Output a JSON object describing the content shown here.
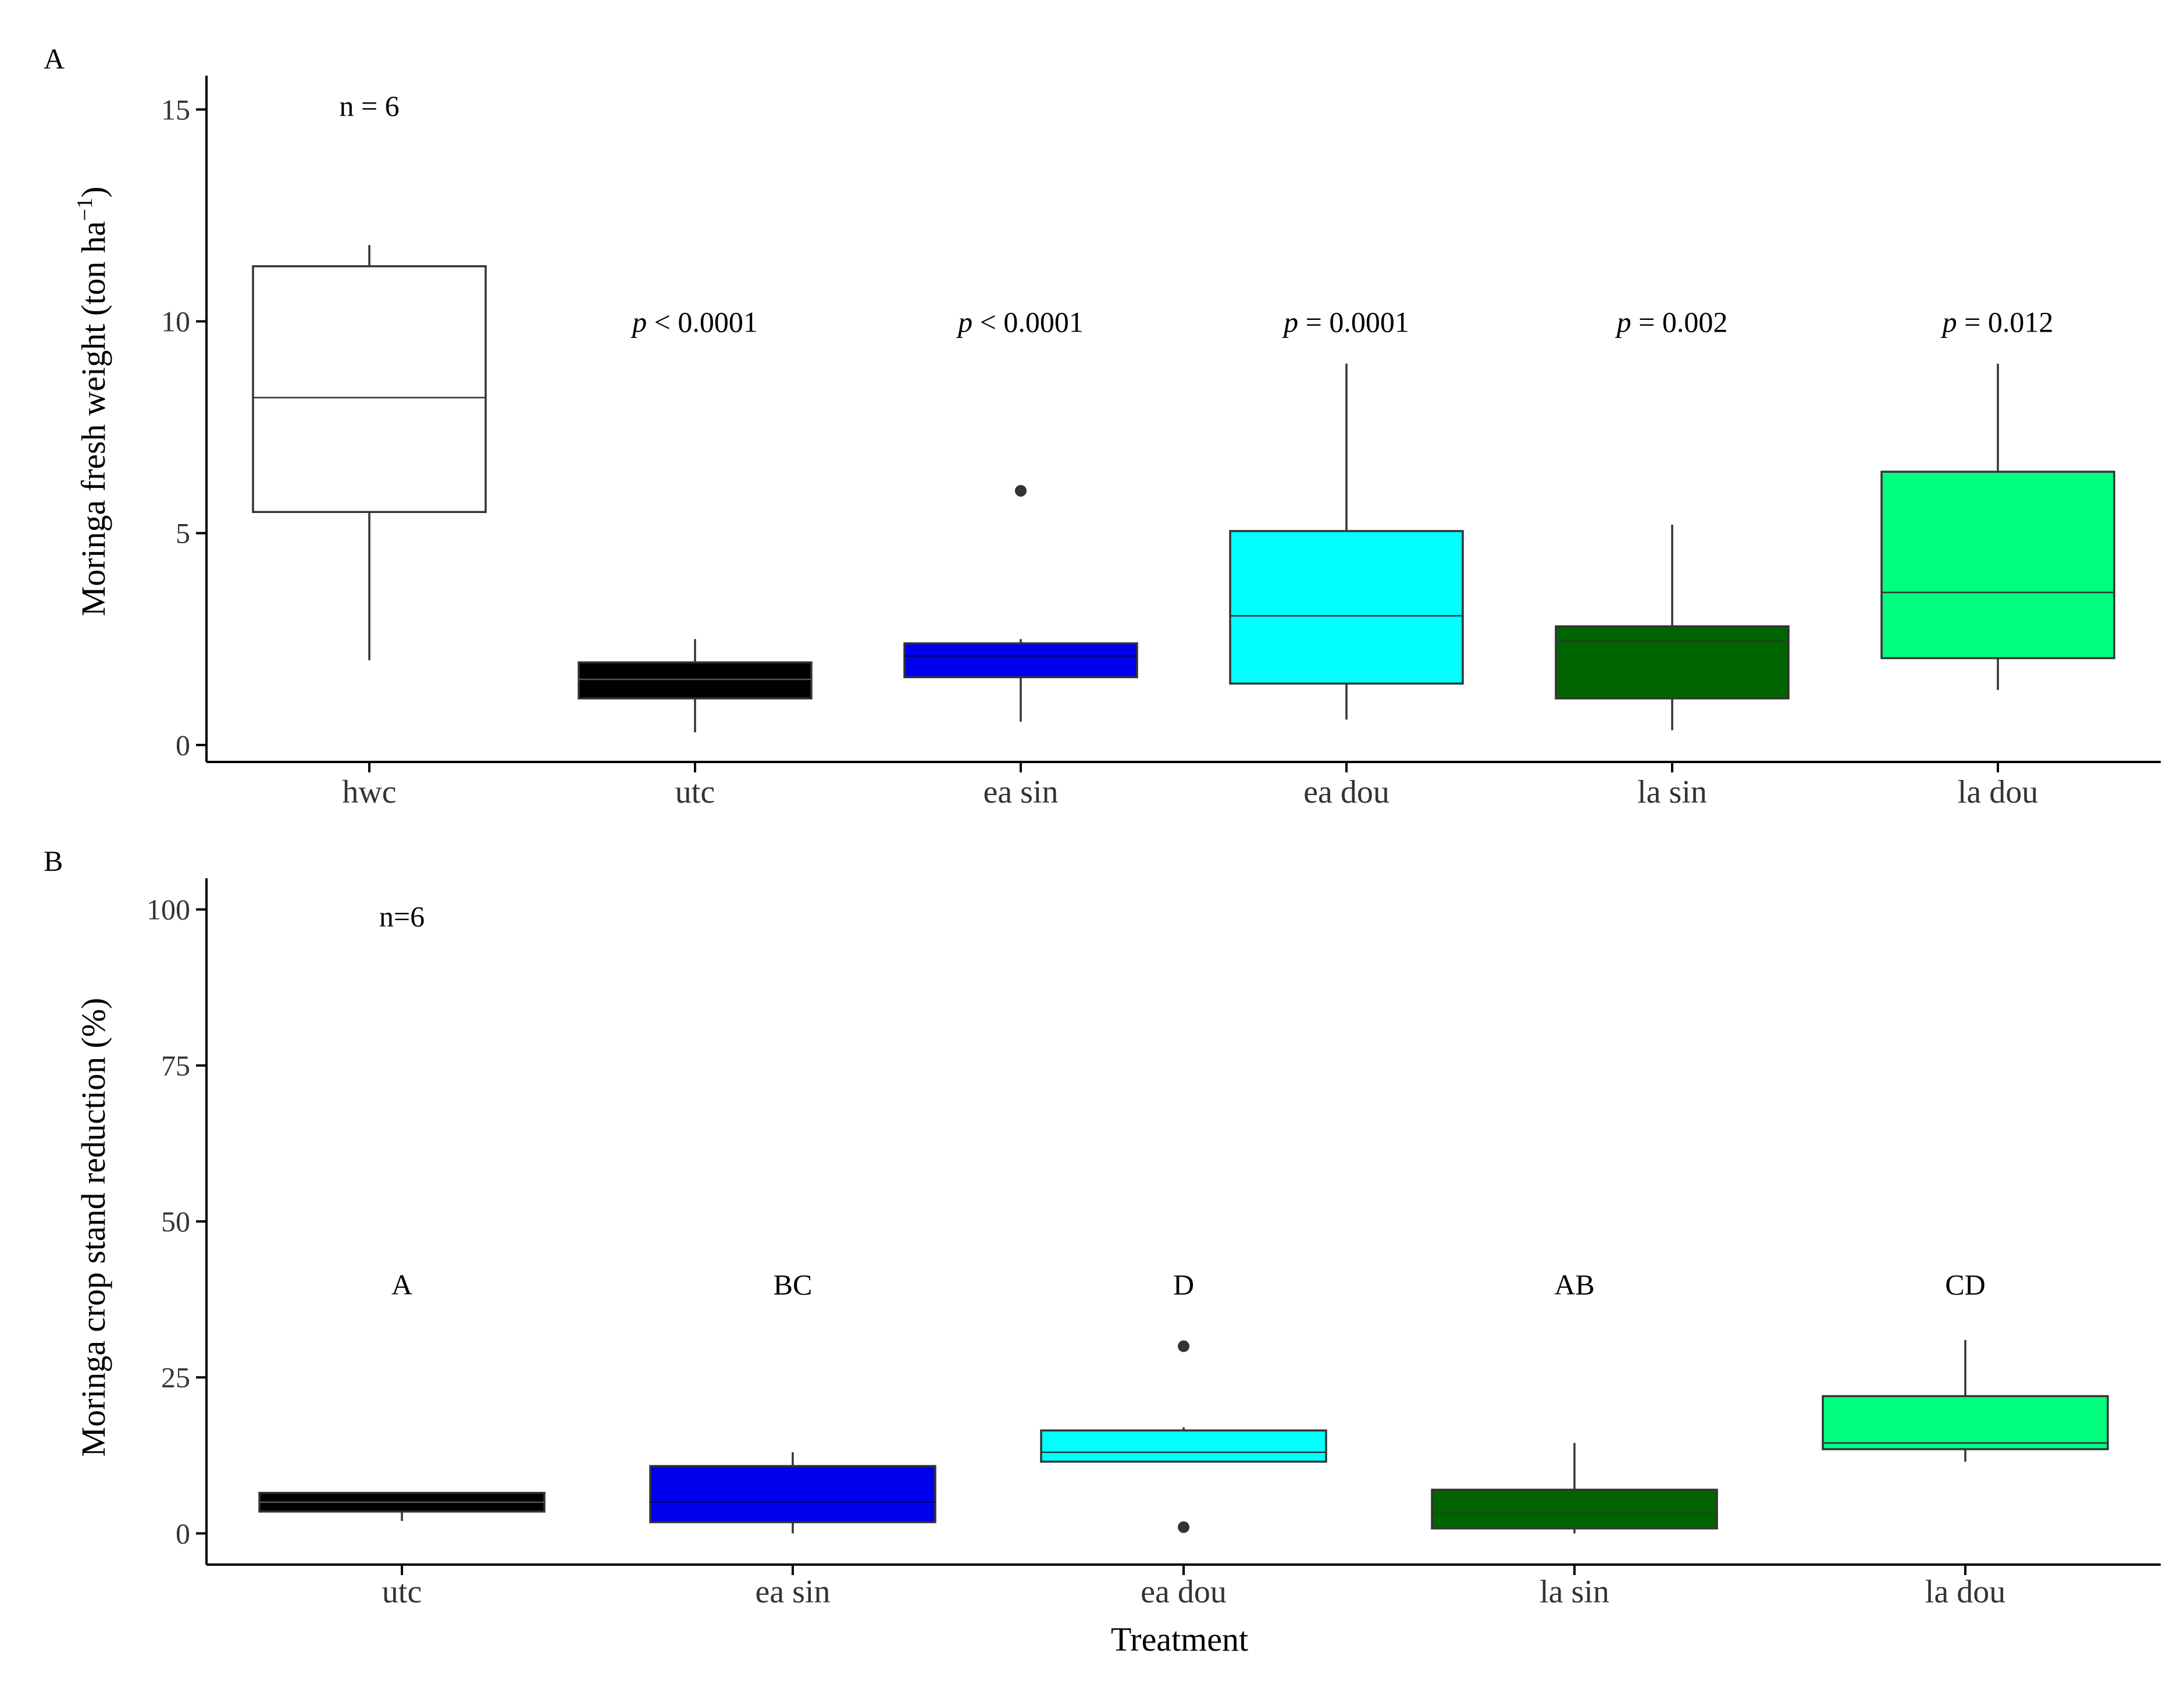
{
  "chart_data": [
    {
      "panel": "A",
      "type": "boxplot",
      "ylabel": "Moringa fresh weight",
      "ylabel_unit": "(ton ha",
      "ylabel_sup": "−1",
      "ylabel_close": ")",
      "ylim": [
        -0.4,
        15.8
      ],
      "yticks": [
        0,
        5,
        10,
        15
      ],
      "tick_labels": [
        "0",
        "5",
        "10",
        "15"
      ],
      "sample_size": "n = 6",
      "categories": [
        "hwc",
        "utc",
        "ea sin",
        "ea dou",
        "la sin",
        "la dou"
      ],
      "boxes": [
        {
          "name": "hwc",
          "min": 2.0,
          "q1": 5.5,
          "median": 8.2,
          "q3": 11.3,
          "max": 11.8,
          "fill": "#ffffff",
          "median_color": "#333333",
          "outliers": []
        },
        {
          "name": "utc",
          "min": 0.3,
          "q1": 1.1,
          "median": 1.55,
          "q3": 1.95,
          "max": 2.5,
          "fill": "#000000",
          "median_color": "#555555",
          "outliers": []
        },
        {
          "name": "ea sin",
          "min": 0.55,
          "q1": 1.6,
          "median": 2.1,
          "q3": 2.4,
          "max": 2.5,
          "fill": "#0000ee",
          "median_color": "#000080",
          "outliers": [
            6.0
          ]
        },
        {
          "name": "ea dou",
          "min": 0.6,
          "q1": 1.45,
          "median": 3.05,
          "q3": 5.05,
          "max": 9.0,
          "fill": "#00ffff",
          "median_color": "#333333",
          "outliers": []
        },
        {
          "name": "la sin",
          "min": 0.35,
          "q1": 1.1,
          "median": 2.45,
          "q3": 2.8,
          "max": 5.2,
          "fill": "#006400",
          "median_color": "#333333",
          "outliers": []
        },
        {
          "name": "la dou",
          "min": 1.3,
          "q1": 2.05,
          "median": 3.6,
          "q3": 6.45,
          "max": 9.0,
          "fill": "#00ff7f",
          "median_color": "#333333",
          "outliers": []
        }
      ],
      "annotations": [
        {
          "category": "utc",
          "italic": "p",
          "rest": " < 0.0001",
          "y": 10.0
        },
        {
          "category": "ea sin",
          "italic": "p",
          "rest": " < 0.0001",
          "y": 10.0
        },
        {
          "category": "ea dou",
          "italic": "p",
          "rest": " = 0.0001",
          "y": 10.0
        },
        {
          "category": "la sin",
          "italic": "p",
          "rest": " = 0.002",
          "y": 10.0
        },
        {
          "category": "la dou",
          "italic": "p",
          "rest": " = 0.012",
          "y": 10.0
        }
      ]
    },
    {
      "panel": "B",
      "type": "boxplot",
      "ylabel": "Moringa crop stand reduction (%)",
      "xlabel": "Treatment",
      "ylim": [
        -5,
        105
      ],
      "yticks": [
        0,
        25,
        50,
        75,
        100
      ],
      "tick_labels": [
        "0",
        "25",
        "50",
        "75",
        "100"
      ],
      "sample_size": "n=6",
      "categories": [
        "utc",
        "ea sin",
        "ea dou",
        "la sin",
        "la dou"
      ],
      "boxes": [
        {
          "name": "utc",
          "min": 2.0,
          "q1": 3.5,
          "median": 5.0,
          "q3": 6.5,
          "max": 6.5,
          "fill": "#000000",
          "median_color": "#555555",
          "outliers": []
        },
        {
          "name": "ea sin",
          "min": 0.0,
          "q1": 1.8,
          "median": 5.0,
          "q3": 10.8,
          "max": 13.0,
          "fill": "#0000ee",
          "median_color": "#000080",
          "outliers": []
        },
        {
          "name": "ea dou",
          "min": 11.5,
          "q1": 11.5,
          "median": 13.0,
          "q3": 16.5,
          "max": 17.0,
          "fill": "#00ffff",
          "median_color": "#333333",
          "outliers": [
            30.0,
            1.0
          ]
        },
        {
          "name": "la sin",
          "min": 0.0,
          "q1": 0.8,
          "median": 3.2,
          "q3": 7.0,
          "max": 14.5,
          "fill": "#006400",
          "median_color": "#333333",
          "outliers": []
        },
        {
          "name": "la dou",
          "min": 11.5,
          "q1": 13.5,
          "median": 14.5,
          "q3": 22.0,
          "max": 31.0,
          "fill": "#00ff7f",
          "median_color": "#333333",
          "outliers": []
        }
      ],
      "annotations": [
        {
          "category": "utc",
          "text": "A",
          "y": 40
        },
        {
          "category": "ea sin",
          "text": "BC",
          "y": 40
        },
        {
          "category": "ea dou",
          "text": "D",
          "y": 40
        },
        {
          "category": "la sin",
          "text": "AB",
          "y": 40
        },
        {
          "category": "la dou",
          "text": "CD",
          "y": 40
        }
      ]
    }
  ]
}
